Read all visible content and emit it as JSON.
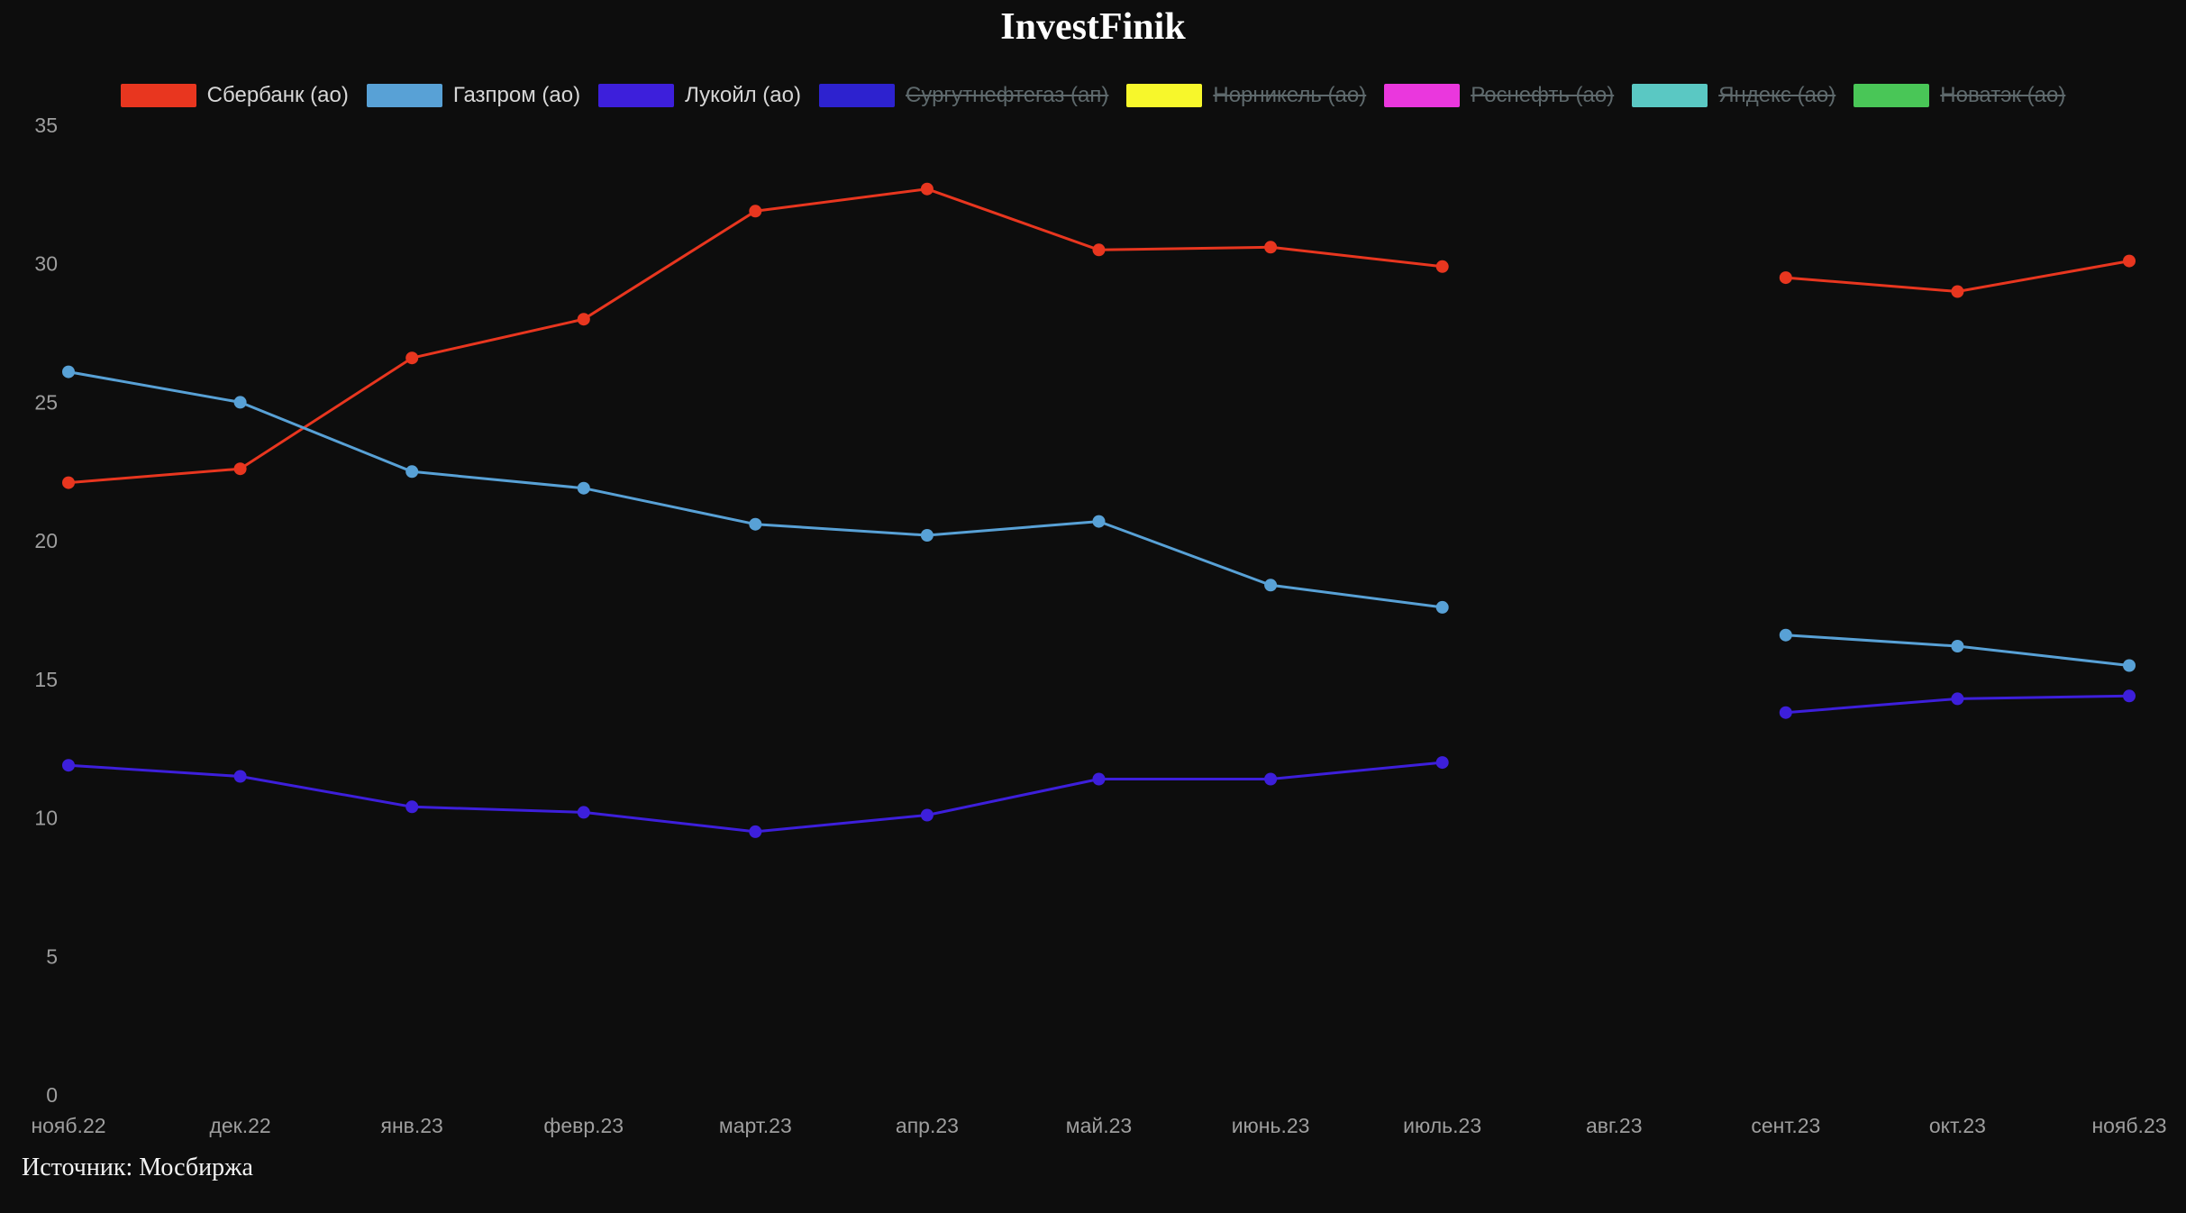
{
  "title": "InvestFinik",
  "source": "Источник: Мосбиржа",
  "colors": {
    "background": "#0d0d0d",
    "title_text": "#ffffff",
    "axis_text": "#9e9e9e",
    "legend_active_text": "#d6d6d6",
    "legend_inactive_text": "#5e696c"
  },
  "legend": [
    {
      "key": "sberbank",
      "label": "Сбербанк (ао)",
      "color": "#e8361f",
      "active": true
    },
    {
      "key": "gazprom",
      "label": "Газпром (ао)",
      "color": "#58a1d6",
      "active": true
    },
    {
      "key": "lukoil",
      "label": "Лукойл (ао)",
      "color": "#3d1fdb",
      "active": true
    },
    {
      "key": "surgutneftegaz",
      "label": "Сургутнефтегаз (ап)",
      "color": "#2d22cf",
      "active": false
    },
    {
      "key": "nornickel",
      "label": "Норникель (ао)",
      "color": "#f7f72b",
      "active": false
    },
    {
      "key": "rosneft",
      "label": "Роснефть (ао)",
      "color": "#ea37dd",
      "active": false
    },
    {
      "key": "yandex",
      "label": "Яндекс (ао)",
      "color": "#5ac8c3",
      "active": false
    },
    {
      "key": "novatek",
      "label": "Новатэк (ао)",
      "color": "#49c657",
      "active": false
    }
  ],
  "chart_data": {
    "type": "line",
    "title": "InvestFinik",
    "x": [
      "нояб.22",
      "дек.22",
      "янв.23",
      "февр.23",
      "март.23",
      "апр.23",
      "май.23",
      "июнь.23",
      "июль.23",
      "авг.23",
      "сент.23",
      "окт.23",
      "нояб.23"
    ],
    "series": [
      {
        "name": "Сбербанк (ао)",
        "color": "#e8361f",
        "values": [
          22.1,
          22.6,
          26.6,
          28.0,
          31.9,
          32.7,
          30.5,
          30.6,
          29.9,
          null,
          29.5,
          29.0,
          30.1
        ]
      },
      {
        "name": "Газпром (ао)",
        "color": "#58a1d6",
        "values": [
          26.1,
          25.0,
          22.5,
          21.9,
          20.6,
          20.2,
          20.7,
          18.4,
          17.6,
          null,
          16.6,
          16.2,
          15.5
        ]
      },
      {
        "name": "Лукойл (ао)",
        "color": "#3d1fdb",
        "values": [
          11.9,
          11.5,
          10.4,
          10.2,
          9.5,
          10.1,
          11.4,
          11.4,
          12.0,
          null,
          13.8,
          14.3,
          14.4
        ]
      }
    ],
    "yticks": [
      0,
      5,
      10,
      15,
      20,
      25,
      30,
      35
    ],
    "ylim": [
      0,
      36.5
    ],
    "xlabel": "",
    "ylabel": "",
    "grid": false,
    "legend_position": "top",
    "markers": true,
    "gap_note": "no data for авг.23 (line break)"
  }
}
